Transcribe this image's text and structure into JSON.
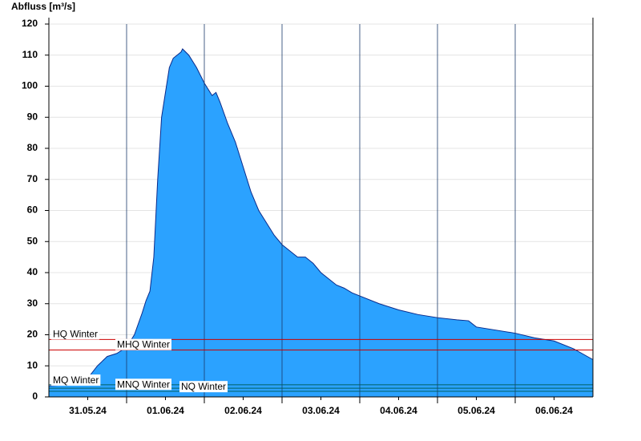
{
  "chart_data": {
    "type": "area",
    "y_label": "Abfluss [m³/s]",
    "color": "#2ba2ff",
    "line_color": "#0a2a8a",
    "x": [
      0,
      0.25,
      0.5,
      0.625,
      0.75,
      0.875,
      1.0,
      1.1,
      1.2,
      1.25,
      1.3,
      1.35,
      1.4,
      1.45,
      1.5,
      1.55,
      1.6,
      1.7,
      1.72,
      1.8,
      1.9,
      2.0,
      2.1,
      2.15,
      2.2,
      2.3,
      2.4,
      2.5,
      2.6,
      2.7,
      2.8,
      2.9,
      3.0,
      3.1,
      3.2,
      3.3,
      3.4,
      3.5,
      3.6,
      3.7,
      3.8,
      3.9,
      4.0,
      4.25,
      4.5,
      4.75,
      5.0,
      5.25,
      5.4,
      5.5,
      5.75,
      6.0,
      6.25,
      6.5,
      6.75,
      7.0
    ],
    "values": [
      3.5,
      4,
      6,
      10,
      13,
      14,
      16,
      20,
      27,
      31,
      34,
      45,
      70,
      90,
      98,
      106,
      109,
      111,
      112,
      110,
      106,
      101,
      97,
      98,
      95,
      88,
      82,
      74,
      66,
      60,
      56,
      52,
      49,
      47,
      45,
      45,
      43,
      40,
      38,
      36,
      35,
      33.5,
      32.5,
      30,
      28,
      26.5,
      25.5,
      24.8,
      24.5,
      22.5,
      21.5,
      20.5,
      19,
      18,
      15.5,
      12
    ],
    "xlim": [
      0,
      7
    ],
    "xticks": [
      {
        "value": 0.5,
        "label": "31.05.24"
      },
      {
        "value": 1.5,
        "label": "01.06.24"
      },
      {
        "value": 2.5,
        "label": "02.06.24"
      },
      {
        "value": 3.5,
        "label": "03.06.24"
      },
      {
        "value": 4.5,
        "label": "04.06.24"
      },
      {
        "value": 5.5,
        "label": "05.06.24"
      },
      {
        "value": 6.5,
        "label": "06.06.24"
      }
    ],
    "x_gridlines": [
      1,
      2,
      3,
      4,
      5,
      6
    ],
    "ylim": [
      0,
      120
    ],
    "yticks": [
      0,
      10,
      20,
      30,
      40,
      50,
      60,
      70,
      80,
      90,
      100,
      110,
      120
    ],
    "grid": true,
    "reference_lines": [
      {
        "label": "HQ Winter",
        "value": 18.5,
        "color": "#cc0000"
      },
      {
        "label": "MHQ Winter",
        "value": 15.1,
        "color": "#cc0000"
      },
      {
        "label": "MQ Winter",
        "value": 3.9,
        "color": "#006060"
      },
      {
        "label": "MNQ Winter",
        "value": 2.8,
        "color": "#006060"
      },
      {
        "label": "NQ Winter",
        "value": 1.8,
        "color": "#006060"
      }
    ]
  }
}
